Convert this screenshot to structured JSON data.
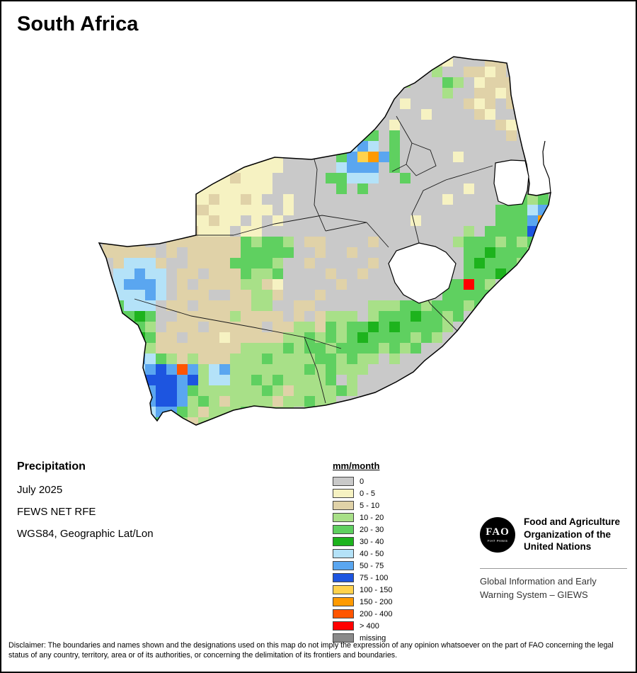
{
  "title": "South Africa",
  "info": {
    "heading": "Precipitation",
    "line1": "July 2025",
    "line2": "FEWS NET RFE",
    "line3": "WGS84, Geographic Lat/Lon"
  },
  "legend": {
    "title": "mm/month",
    "items": [
      {
        "label": "0",
        "color": "#c9c9c9"
      },
      {
        "label": "0 - 5",
        "color": "#f6f2c2"
      },
      {
        "label": "5 - 10",
        "color": "#e0d2a8"
      },
      {
        "label": "10 - 20",
        "color": "#a8e088"
      },
      {
        "label": "20 - 30",
        "color": "#5fd060"
      },
      {
        "label": "30 - 40",
        "color": "#1db31d"
      },
      {
        "label": "40 - 50",
        "color": "#b4e2f8"
      },
      {
        "label": "50 - 75",
        "color": "#5aa6f0"
      },
      {
        "label": "75 - 100",
        "color": "#1d55e0"
      },
      {
        "label": "100 - 150",
        "color": "#ffd24d"
      },
      {
        "label": "150 - 200",
        "color": "#ff9a00"
      },
      {
        "label": "200 - 400",
        "color": "#ff5500"
      },
      {
        "label": "> 400",
        "color": "#ff0000"
      },
      {
        "label": "missing",
        "color": "#8a8a8a"
      }
    ]
  },
  "org": {
    "logo_text": "FAO",
    "logo_subtext": "FIAT PANIS",
    "name_lines": [
      "Food and Agriculture",
      "Organization of the",
      "United Nations"
    ],
    "giews_lines": [
      "Global Information and Early",
      "Warning System – GIEWS"
    ]
  },
  "disclaimer": "Disclaimer: The boundaries and names shown and the designations used on this map do not imply the expression of any opinion whatsoever on the part of FAO concerning the legal status of any country, territory, area or of its authorities, or concerning the delimitation of its frontiers and boundaries.",
  "map": {
    "cell_size": 15,
    "palette": {
      "G": "#c9c9c9",
      "Y": "#f6f2c2",
      "T": "#e0d2a8",
      "l": "#a8e088",
      "m": "#5fd060",
      "d": "#1db31d",
      "c": "#b4e2f8",
      "b": "#5aa6f0",
      "B": "#1d55e0",
      "y": "#ffd24d",
      "o": "#ff9a00",
      "O": "#ff5500",
      "R": "#ff0000",
      "M": "#8a8a8a"
    },
    "grid_rows": [
      "GGGGGGGGGGGGGGGGGGGGGGGGGGGGGGTGGYGGGGTGGGGG",
      "GGGGGGGGGGGGGGGGGGGGGGGGGGYGGTTGTYGGGTTGYGGG",
      "GGGGGGGGGGGGGGGGGGGGGGGGGGGYGGlGlGGTTYTGTTGG",
      "GGGGGGGGGGGGGGGGGGGGGGGYYGGGGlGGGmlGYTTTGYGG",
      "GGGGGGGGGGGGGGGGGGYGGYYGGGGlGGGGGlGGTTYTGGGG",
      "GGGGGGGGGGGGGGGYGYGGYYGGGGGGGYGGGGGTYTGTTGGG",
      "GGGGGGGGGGGGGYYGYYGGGGYYGGGGGGGYGGGGTYGGGTGG",
      "GGGGGGGGGGYGYYGGGGGGGYGGGGGGYGGGGGGGGGTYGGGG",
      "GGGGGGGGGYGGGGGGGGGYGGGmGmmGmGGGGGGGGGGTGGGG",
      "GGGGGGGGGGGGGYGGGGGGGGGmcbcGmGGGGGGGGGGGGGGG",
      "GGGGGGGGGGGYGYYGYYGGGGGmbyobmGGGGGYGGGGGGGGG",
      "GGGGGGGGGGGYGYYYYYGGGGGcbbbGmGGGGGGGGGGGGGGG",
      "GGGGGGGGGGYYYTYYYGGGGGmmcccGGmGGGGGGGGGGGGGG",
      "GGbGGTTGTTYYYYYYYGGGGGGmGmGGGGGGGGGYGGGGGGGG",
      "GGGTTTYGTYYTYYTYGGYGGGGGGGGGGGGGGYGGGGGmmlmG",
      "GGTTTYTGYTTYYYYYYGYGGGGGGGGGGGGGGGGGGGmmmcbb",
      "GTTGTTGYTYYTYYGYGYGGGGGGGGGGGGYGGGGGGGmmmboy",
      "GGTTYTGGTTYYYGYYGGGGGGGGGGGGGGGGGGGlGmmmmBoG",
      "GTTTTGGTTTTTTTmlmmlGTTGGGGTGGGGGGGlmmmlmlmGG",
      "GTTTTTGTGTTTTTmmmmmGGTGGTGGGGGGGGGGmmdmmmlGG",
      "GGTcccTGGTTTTmmmmlGGTGGGGGTGGGGGGGGmdmmmlGGG",
      "GGccbccGTTGTTTmllmGGGGTGGTGGGGGGGGGmmmdmlGGG",
      "GGcbbbcGTGTTTTllTYGGGGGTGGGGGGGGGmmRmlGGGGGG",
      "GGcccbcGTTTGGTTllTGGGTGGGGGGGGGGGmmmmmGGGGGG",
      "GGmcccGTTGTTTTTllGGTTGGGGGlllmmlmmmlmGGGGGGG",
      "GGmmdmGGTTTTTlTTTTGTGTlllGlmmmdmmlmGGGGGGGGG",
      "GGdmmlGTTTGTTTTTGTTllTmlmmdmdmmmmlGGGGGGGGGG",
      "GGmddmTTGTTTYTTTTTllmlmlmdmmmmlmlGGGGGGGGGGG",
      "GGmmmlTTTTTTTTllllmlmmlmmmmlmlmGGGGGGGGGGGGG",
      "GGGcbcmlTlTTTlllmllllmmlmllGlGGGGGGGGGGGGGGG",
      "GGGccbBbOblcblllllllmlmlllGGGGGGGGGGGGGGGGGG",
      "GGGbbBBBbBlccllmlmllllmGlGGGGGGGGGGGGGGGGGGG",
      "GGGcBbBBbmllllllmlTllllmlGGGGGGGGGGGGGGGGGGG",
      "GGGGcbBBblmlTllllTllmllGGGGGGGGGGGGGGGGGGGGG",
      "GGGGGcbbmlTlllmlTllGllGGGGGGGGGGGGGGGGGGGGGG",
      "GGGGGbmllTllmllGGlGGGGGGGGGGGGGGGGGGGGGGGGGG",
      "GGGGGlmGlGGGGGGGGGGGGGGGGGGGGGGGGGGGGGGGGGGG"
    ]
  }
}
